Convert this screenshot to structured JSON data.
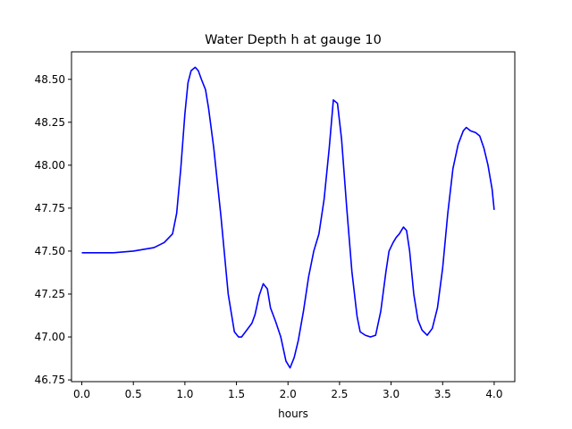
{
  "chart_data": {
    "type": "line",
    "title": "Water Depth h at gauge 10",
    "xlabel": "hours",
    "ylabel": "",
    "xlim": [
      -0.1,
      4.2
    ],
    "ylim": [
      46.74,
      48.66
    ],
    "xticks": [
      0.0,
      0.5,
      1.0,
      1.5,
      2.0,
      2.5,
      3.0,
      3.5,
      4.0
    ],
    "xtick_labels": [
      "0.0",
      "0.5",
      "1.0",
      "1.5",
      "2.0",
      "2.5",
      "3.0",
      "3.5",
      "4.0"
    ],
    "yticks": [
      46.75,
      47.0,
      47.25,
      47.5,
      47.75,
      48.0,
      48.25,
      48.5
    ],
    "ytick_labels": [
      "46.75",
      "47.00",
      "47.25",
      "47.50",
      "47.75",
      "48.00",
      "48.25",
      "48.50"
    ],
    "grid": false,
    "series": [
      {
        "color": "#0000ff",
        "x": [
          0.0,
          0.3,
          0.5,
          0.7,
          0.8,
          0.88,
          0.92,
          0.96,
          1.0,
          1.03,
          1.06,
          1.1,
          1.13,
          1.16,
          1.2,
          1.23,
          1.28,
          1.35,
          1.42,
          1.48,
          1.52,
          1.55,
          1.6,
          1.65,
          1.68,
          1.72,
          1.76,
          1.8,
          1.83,
          1.88,
          1.93,
          1.98,
          2.02,
          2.06,
          2.1,
          2.15,
          2.2,
          2.25,
          2.3,
          2.35,
          2.4,
          2.44,
          2.48,
          2.52,
          2.57,
          2.62,
          2.67,
          2.7,
          2.75,
          2.8,
          2.85,
          2.9,
          2.95,
          2.98,
          3.02,
          3.05,
          3.08,
          3.12,
          3.15,
          3.18,
          3.22,
          3.26,
          3.3,
          3.35,
          3.4,
          3.45,
          3.5,
          3.55,
          3.6,
          3.65,
          3.7,
          3.73,
          3.77,
          3.82,
          3.86,
          3.9,
          3.94,
          3.98,
          4.0
        ],
        "y": [
          47.49,
          47.49,
          47.5,
          47.52,
          47.55,
          47.6,
          47.72,
          47.98,
          48.3,
          48.48,
          48.55,
          48.57,
          48.55,
          48.5,
          48.44,
          48.33,
          48.1,
          47.7,
          47.25,
          47.03,
          47.0,
          47.0,
          47.04,
          47.08,
          47.13,
          47.24,
          47.31,
          47.28,
          47.17,
          47.09,
          47.0,
          46.86,
          46.82,
          46.88,
          46.98,
          47.15,
          47.35,
          47.5,
          47.6,
          47.8,
          48.1,
          48.38,
          48.36,
          48.15,
          47.75,
          47.38,
          47.12,
          47.03,
          47.01,
          47.0,
          47.01,
          47.15,
          47.38,
          47.5,
          47.55,
          47.58,
          47.6,
          47.64,
          47.62,
          47.5,
          47.25,
          47.1,
          47.04,
          47.01,
          47.05,
          47.17,
          47.4,
          47.72,
          47.98,
          48.12,
          48.2,
          48.22,
          48.2,
          48.19,
          48.17,
          48.1,
          48.0,
          47.86,
          47.74
        ]
      }
    ]
  }
}
